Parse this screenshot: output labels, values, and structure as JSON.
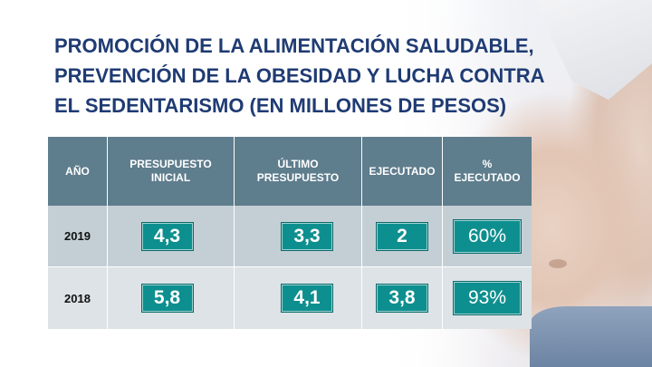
{
  "title": {
    "line1": "PROMOCIÓN DE LA ALIMENTACIÓN SALUDABLE,",
    "line2": "PREVENCIÓN DE LA OBESIDAD Y LUCHA CONTRA",
    "line3": "EL SEDENTARISMO (EN MILLONES DE PESOS)"
  },
  "table": {
    "headers": [
      "AÑO",
      "PRESUPUESTO\nINICIAL",
      "ÚLTIMO\nPRESUPUESTO",
      "EJECUTADO",
      "%\nEJECUTADO"
    ],
    "rows": [
      {
        "year": "2019",
        "inicial": "4,3",
        "ultimo": "3,3",
        "ejecutado": "2",
        "pct": "60%"
      },
      {
        "year": "2018",
        "inicial": "5,8",
        "ultimo": "4,1",
        "ejecutado": "3,8",
        "pct": "93%"
      }
    ]
  },
  "colors": {
    "title": "#1f3b73",
    "header_bg": "#5e7d8d",
    "value_box": "#0e8f8f"
  }
}
